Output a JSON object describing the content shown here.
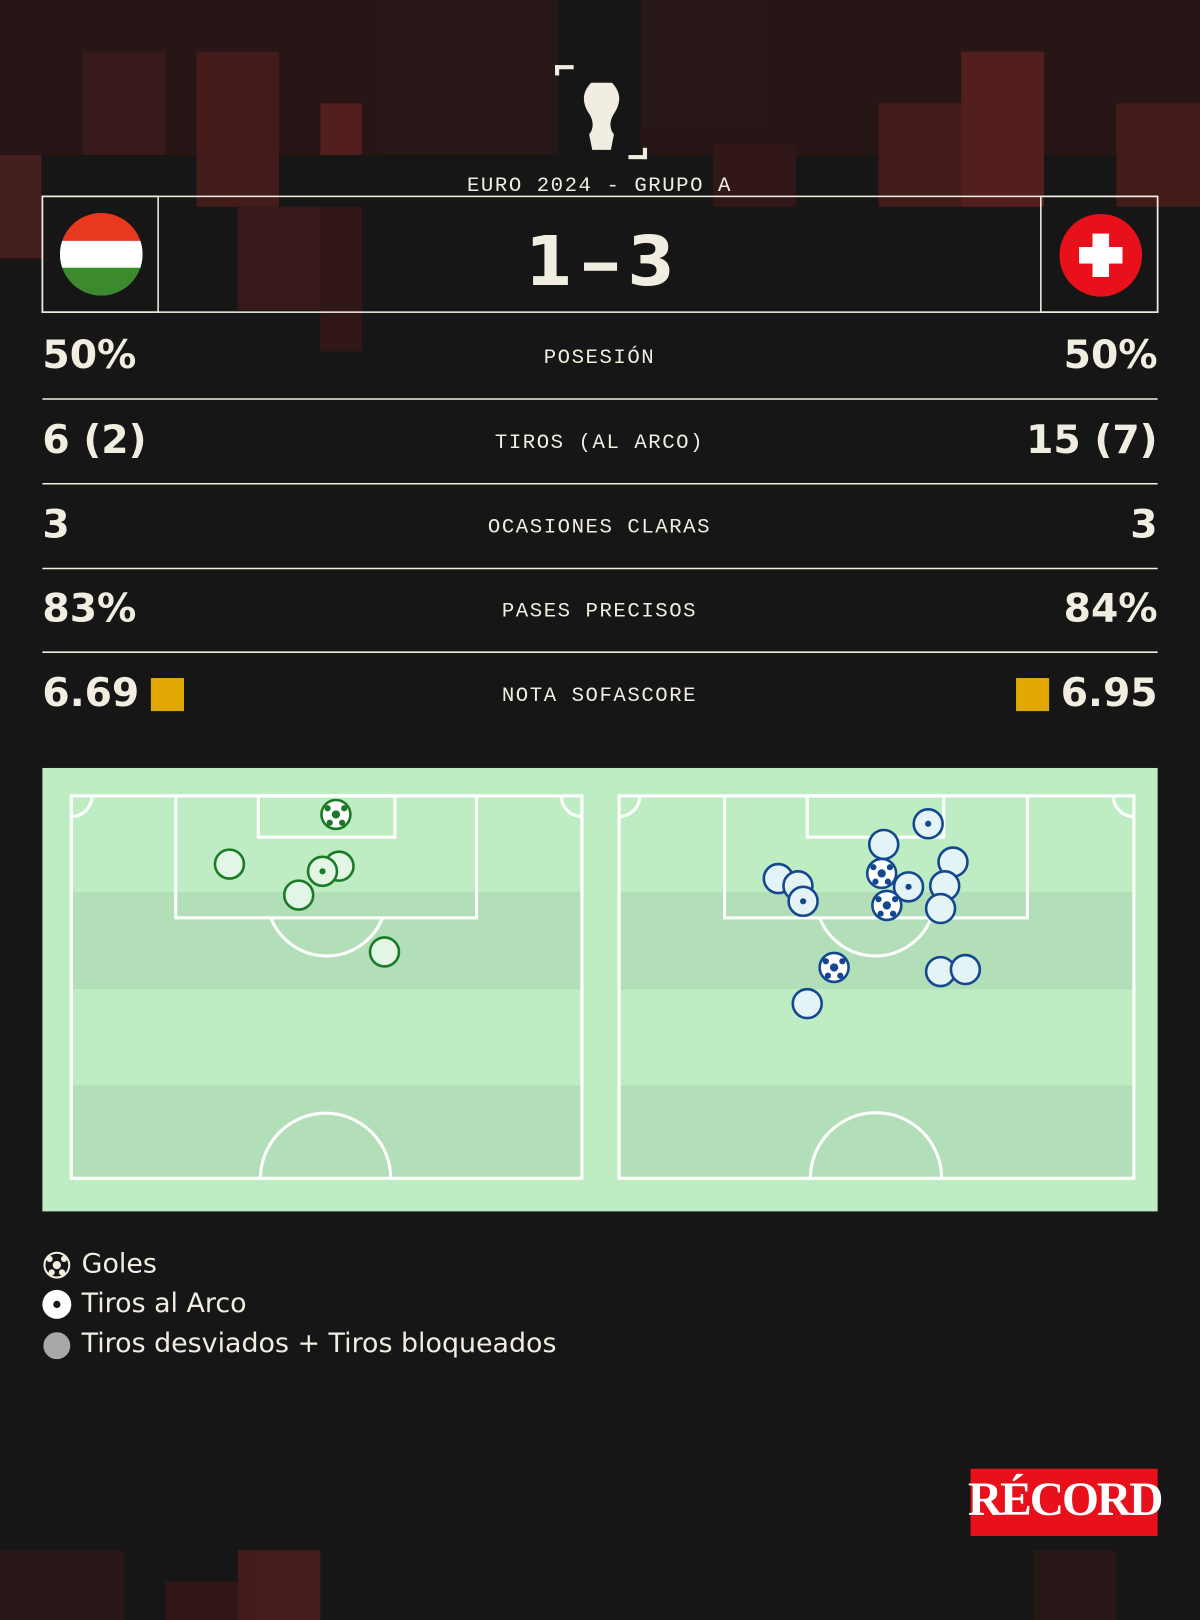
{
  "header": {
    "competition": "EURO 2024 - GRUPO A",
    "score": {
      "home": "1",
      "away": "3"
    }
  },
  "stats": [
    {
      "label": "POSESIÓN",
      "home": "50%",
      "away": "50%"
    },
    {
      "label": "TIROS (AL ARCO)",
      "home": "6 (2)",
      "away": "15 (7)"
    },
    {
      "label": "OCASIONES CLARAS",
      "home": "3",
      "away": "3"
    },
    {
      "label": "PASES PRECISOS",
      "home": "83%",
      "away": "84%"
    },
    {
      "label": "NOTA SOFASCORE",
      "home": "6.69",
      "away": "6.95"
    }
  ],
  "legend": [
    "Goles",
    "Tiros al Arco",
    "Tiros desviados + Tiros bloqueados"
  ],
  "logo": "RÉCORD"
}
